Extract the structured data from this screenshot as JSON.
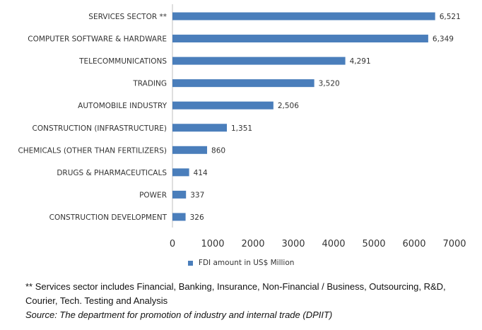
{
  "chart_data": {
    "type": "bar",
    "orientation": "horizontal",
    "categories": [
      "SERVICES SECTOR **",
      "COMPUTER SOFTWARE & HARDWARE",
      "TELECOMMUNICATIONS",
      "TRADING",
      "AUTOMOBILE INDUSTRY",
      "CONSTRUCTION (INFRASTRUCTURE)",
      "CHEMICALS (OTHER THAN FERTILIZERS)",
      "DRUGS & PHARMACEUTICALS",
      "POWER",
      "CONSTRUCTION DEVELOPMENT"
    ],
    "series": [
      {
        "name": "FDI amount in US$ Million",
        "values": [
          6521,
          6349,
          4291,
          3520,
          2506,
          1351,
          860,
          414,
          337,
          326
        ],
        "value_labels": [
          "6,521",
          "6,349",
          "4,291",
          "3,520",
          "2,506",
          "1,351",
          "860",
          "414",
          "337",
          "326"
        ],
        "color": "#4a7ebb"
      }
    ],
    "xlim": [
      0,
      7000
    ],
    "xticks": [
      0,
      1000,
      2000,
      3000,
      4000,
      5000,
      6000,
      7000
    ],
    "grid": false,
    "legend_position": "bottom"
  },
  "legend": {
    "label": "FDI amount in US$ Million"
  },
  "notes": {
    "footnote": "** Services sector includes Financial, Banking, Insurance, Non-Financial / Business, Outsourcing, R&D, Courier, Tech. Testing and Analysis",
    "source": "Source: The department for promotion of industry and internal trade (DPIIT)"
  }
}
